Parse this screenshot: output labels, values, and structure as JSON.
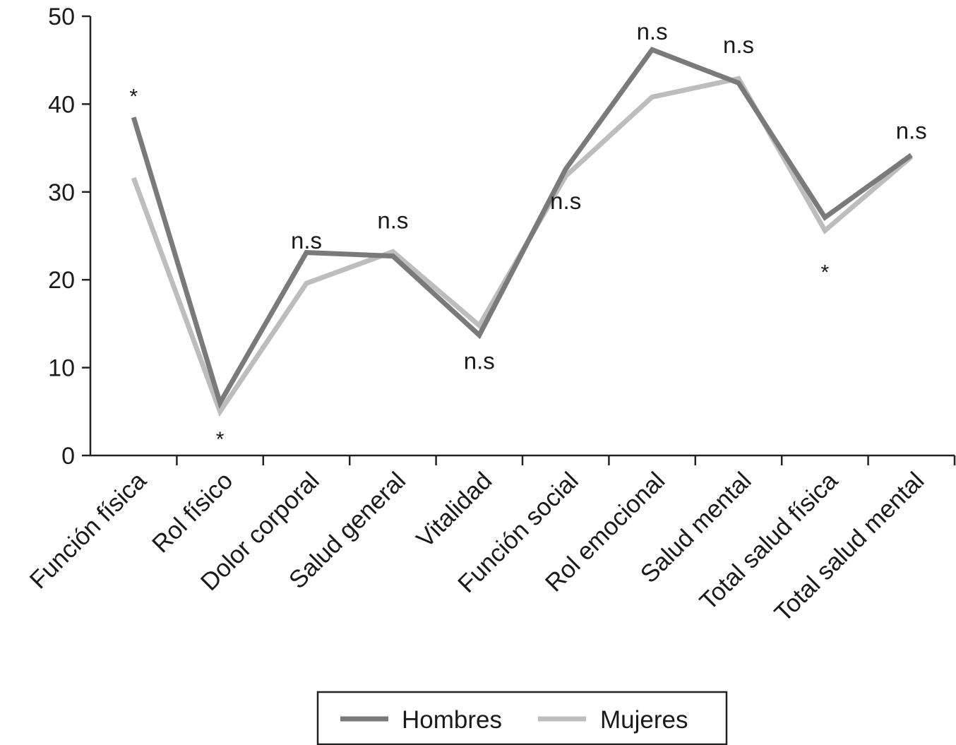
{
  "chart_data": {
    "type": "line",
    "categories": [
      "Función física",
      "Rol físico",
      "Dolor corporal",
      "Salud general",
      "Vitalidad",
      "Función  social",
      "Rol emocional",
      "Salud mental",
      "Total salud física",
      "Total salud mental"
    ],
    "series": [
      {
        "name": "Hombres",
        "color": "#7a7a7a",
        "values": [
          38.5,
          6.0,
          23.1,
          22.7,
          13.7,
          32.6,
          46.2,
          42.4,
          27.1,
          34.2
        ]
      },
      {
        "name": "Mujeres",
        "color": "#bdbdbd",
        "values": [
          31.6,
          5.0,
          19.6,
          23.2,
          14.8,
          31.8,
          40.8,
          42.9,
          25.6,
          34.0
        ]
      }
    ],
    "ylim": [
      0,
      50
    ],
    "yticks": [
      "0",
      "10",
      "20",
      "30",
      "40",
      "50"
    ],
    "annotations": [
      {
        "text": "*",
        "category": 0,
        "y": 41.5
      },
      {
        "text": "*",
        "category": 1,
        "y": 2.5
      },
      {
        "text": "n.s",
        "category": 2,
        "y": 24.5
      },
      {
        "text": "n.s",
        "category": 3,
        "y": 26.8
      },
      {
        "text": "n.s",
        "category": 4,
        "y": 10.8
      },
      {
        "text": "n.s",
        "category": 5,
        "y": 29.0
      },
      {
        "text": "n.s",
        "category": 6,
        "y": 48.3
      },
      {
        "text": "n.s",
        "category": 7,
        "y": 46.8
      },
      {
        "text": "*",
        "category": 8,
        "y": 21.5
      },
      {
        "text": "n.s",
        "category": 9,
        "y": 37.0
      }
    ],
    "legend": {
      "position": "bottom"
    },
    "grid": false
  }
}
